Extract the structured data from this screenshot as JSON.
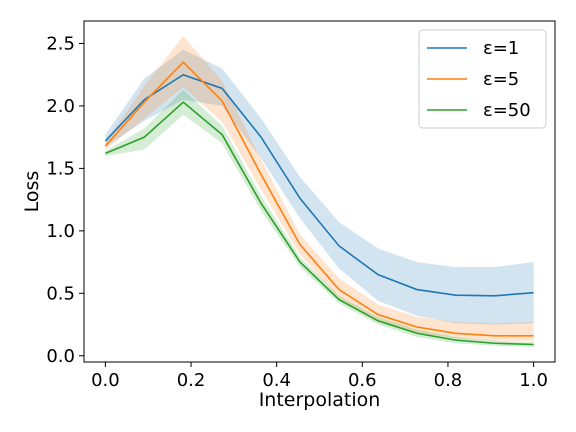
{
  "chart_data": {
    "type": "line",
    "xlabel": "Interpolation",
    "ylabel": "Loss",
    "xlim": [
      -0.05,
      1.05
    ],
    "ylim": [
      -0.05,
      2.68
    ],
    "xticks": [
      0.0,
      0.2,
      0.4,
      0.6,
      0.8,
      1.0
    ],
    "xtick_labels": [
      "0.0",
      "0.2",
      "0.4",
      "0.6",
      "0.8",
      "1.0"
    ],
    "yticks": [
      0.0,
      0.5,
      1.0,
      1.5,
      2.0,
      2.5
    ],
    "ytick_labels": [
      "0.0",
      "0.5",
      "1.0",
      "1.5",
      "2.0",
      "2.5"
    ],
    "grid": false,
    "legend_position": "top-right",
    "x": [
      0.0,
      0.0909,
      0.1818,
      0.2727,
      0.3636,
      0.4545,
      0.5455,
      0.6364,
      0.7273,
      0.8182,
      0.9091,
      1.0
    ],
    "series": [
      {
        "name": "ε=1",
        "color": "#1f77b4",
        "values": [
          1.72,
          2.05,
          2.25,
          2.14,
          1.75,
          1.26,
          0.88,
          0.65,
          0.53,
          0.485,
          0.48,
          0.505
        ],
        "lower": [
          1.67,
          1.88,
          2.05,
          2.0,
          1.58,
          1.1,
          0.7,
          0.44,
          0.32,
          0.26,
          0.25,
          0.26
        ],
        "upper": [
          1.77,
          2.22,
          2.45,
          2.3,
          1.9,
          1.43,
          1.07,
          0.86,
          0.75,
          0.71,
          0.71,
          0.75
        ]
      },
      {
        "name": "ε=5",
        "color": "#ff7f0e",
        "values": [
          1.68,
          2.03,
          2.35,
          2.04,
          1.45,
          0.89,
          0.53,
          0.33,
          0.23,
          0.18,
          0.16,
          0.16
        ],
        "lower": [
          1.65,
          1.9,
          2.15,
          1.87,
          1.33,
          0.81,
          0.46,
          0.27,
          0.18,
          0.14,
          0.12,
          0.12
        ],
        "upper": [
          1.71,
          2.16,
          2.56,
          2.2,
          1.57,
          0.97,
          0.62,
          0.41,
          0.31,
          0.27,
          0.26,
          0.27
        ]
      },
      {
        "name": "ε=50",
        "color": "#2ca02c",
        "values": [
          1.62,
          1.75,
          2.03,
          1.77,
          1.22,
          0.75,
          0.45,
          0.28,
          0.18,
          0.125,
          0.1,
          0.09
        ],
        "lower": [
          1.6,
          1.65,
          1.93,
          1.7,
          1.16,
          0.71,
          0.42,
          0.25,
          0.15,
          0.1,
          0.08,
          0.07
        ],
        "upper": [
          1.64,
          1.82,
          2.13,
          1.84,
          1.28,
          0.79,
          0.48,
          0.31,
          0.21,
          0.15,
          0.12,
          0.11
        ]
      }
    ]
  }
}
